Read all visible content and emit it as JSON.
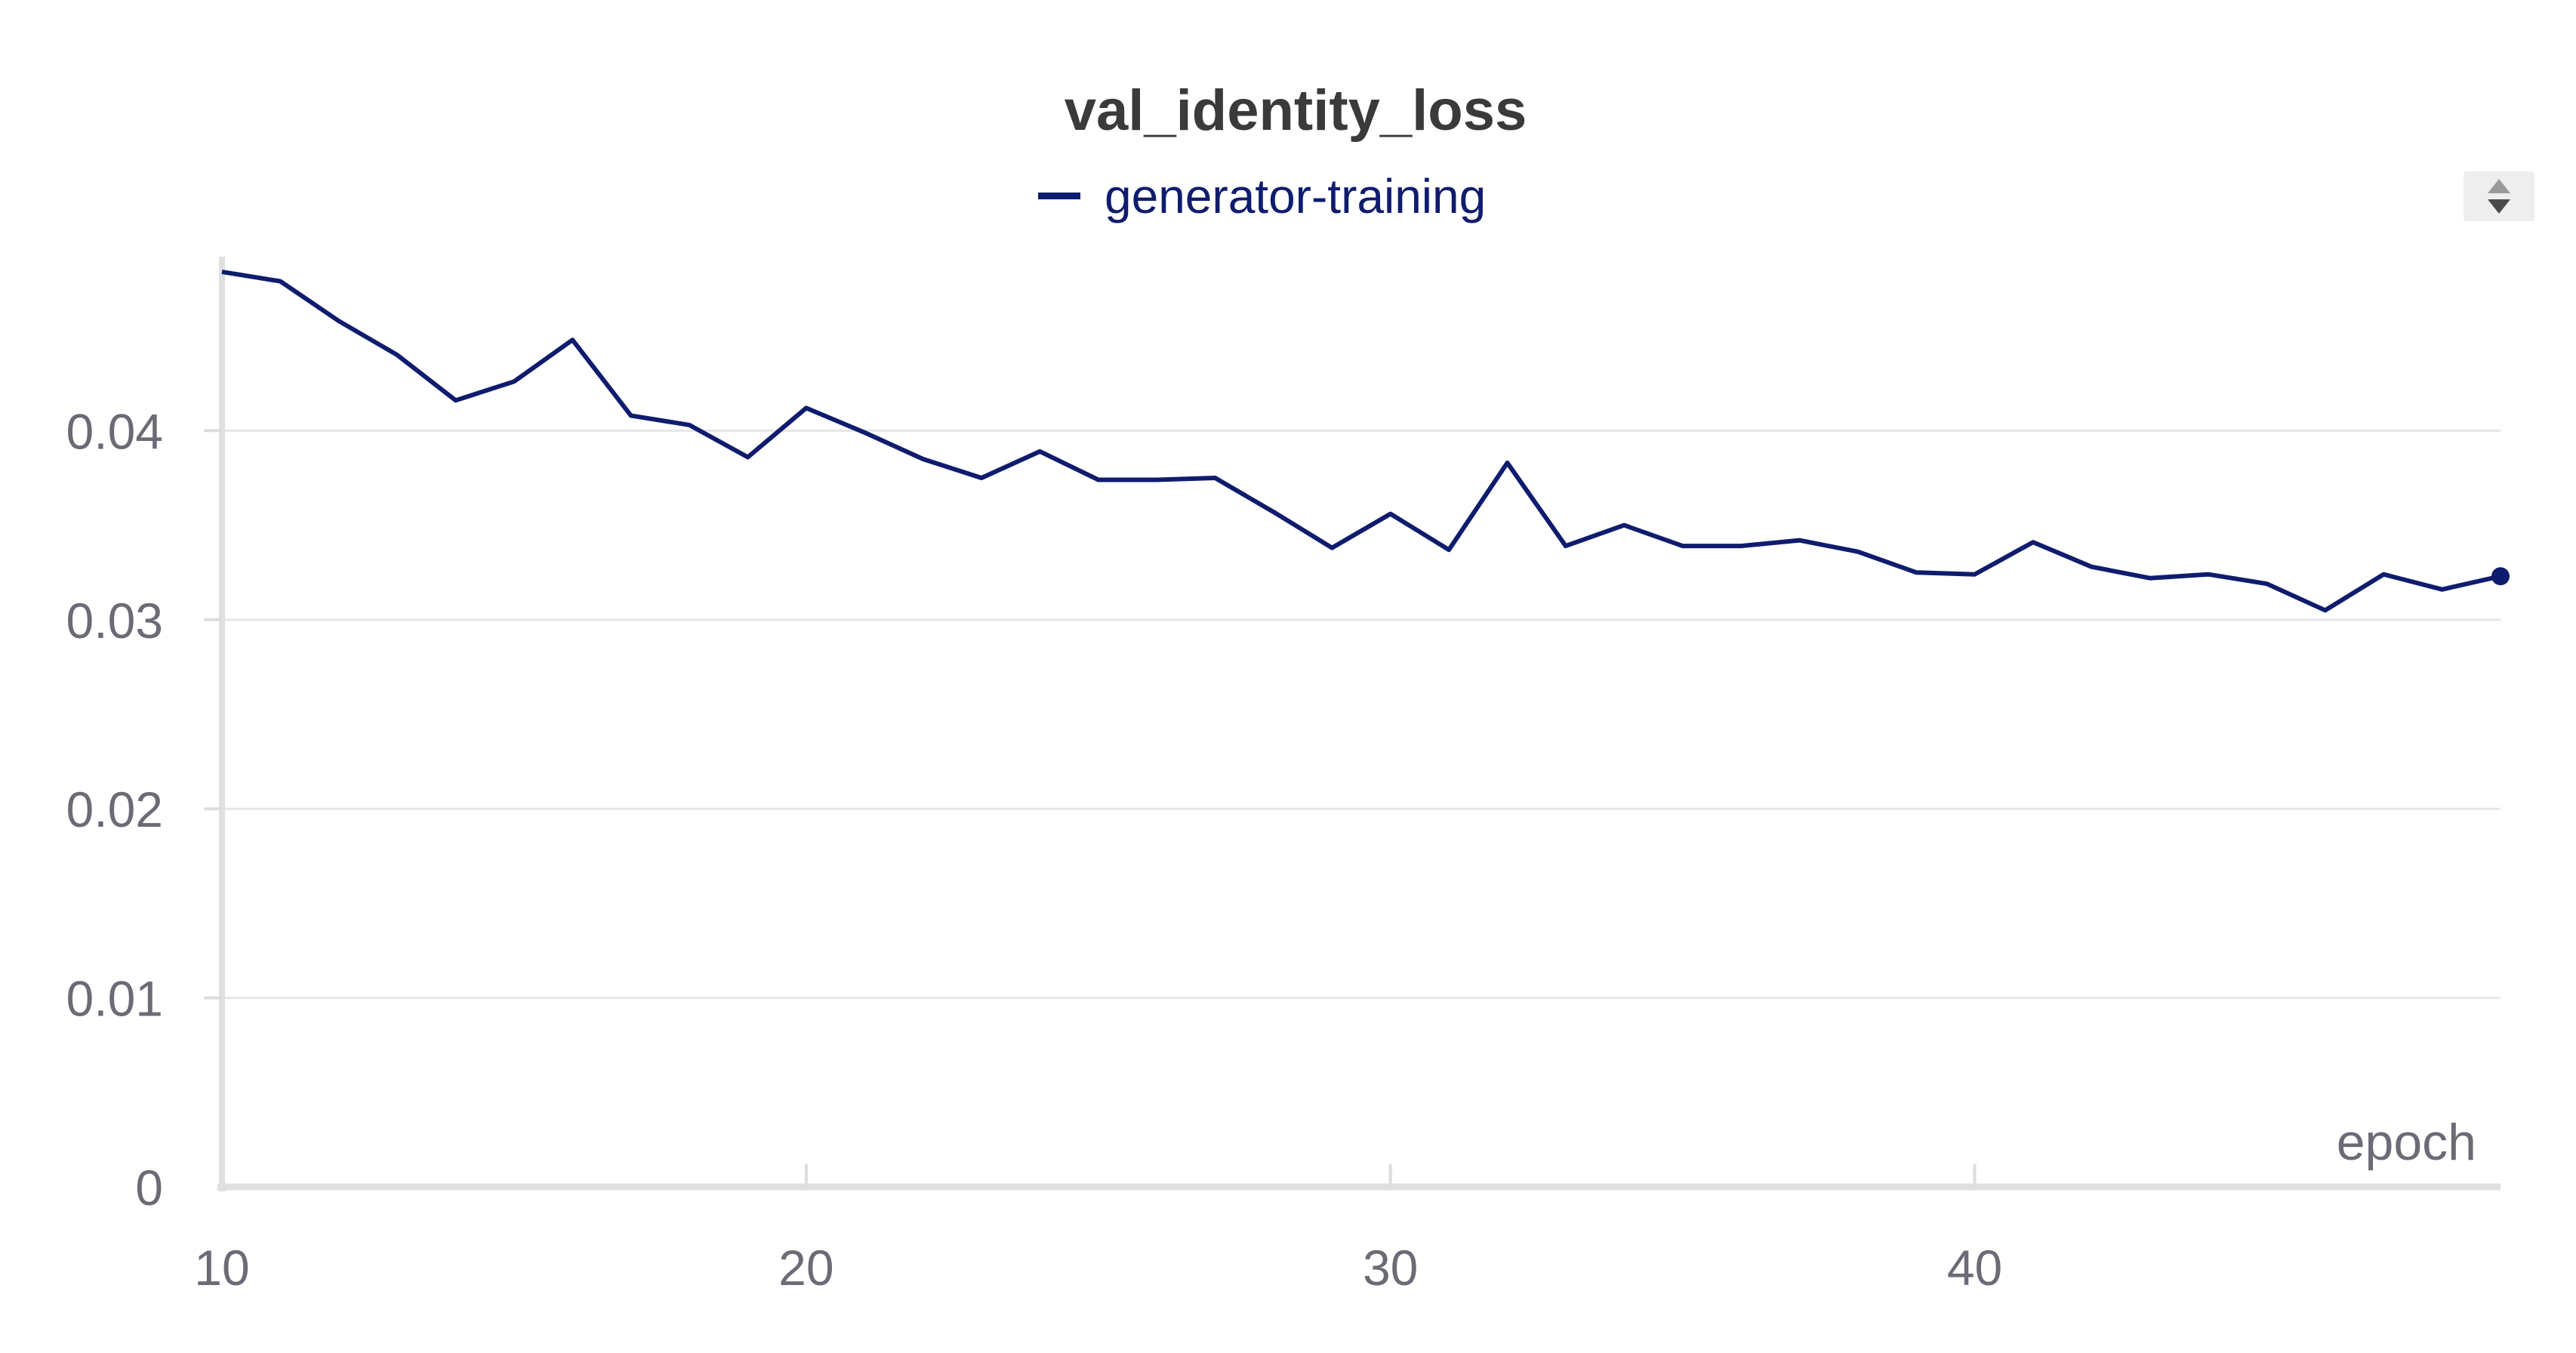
{
  "chart_data": {
    "type": "line",
    "title": "val_identity_loss",
    "xlabel": "epoch",
    "ylabel": "",
    "xlim": [
      10,
      49
    ],
    "ylim": [
      0,
      0.05
    ],
    "x_ticks": [
      10,
      20,
      30,
      40
    ],
    "y_ticks": [
      0,
      0.01,
      0.02,
      0.03,
      0.04
    ],
    "y_tick_labels": [
      "0",
      "0.01",
      "0.02",
      "0.03",
      "0.04"
    ],
    "grid": true,
    "legend_position": "top-center",
    "series": [
      {
        "name": "generator-training",
        "color": "#0f1c6e",
        "x": [
          10,
          11,
          12,
          13,
          14,
          15,
          16,
          17,
          18,
          19,
          20,
          21,
          22,
          23,
          24,
          25,
          26,
          27,
          28,
          29,
          30,
          31,
          32,
          33,
          34,
          35,
          36,
          37,
          38,
          39,
          40,
          41,
          42,
          43,
          44,
          45,
          46,
          47,
          48,
          49
        ],
        "values": [
          0.0484,
          0.0479,
          0.0458,
          0.044,
          0.0416,
          0.0426,
          0.0448,
          0.0408,
          0.0403,
          0.0386,
          0.0412,
          0.0399,
          0.0385,
          0.0375,
          0.0389,
          0.0374,
          0.0374,
          0.0375,
          0.0357,
          0.0338,
          0.0356,
          0.0337,
          0.0383,
          0.0339,
          0.035,
          0.0339,
          0.0339,
          0.0342,
          0.0336,
          0.0325,
          0.0324,
          0.0341,
          0.0328,
          0.0322,
          0.0324,
          0.0319,
          0.0305,
          0.0324,
          0.0316,
          0.0323
        ]
      }
    ]
  }
}
